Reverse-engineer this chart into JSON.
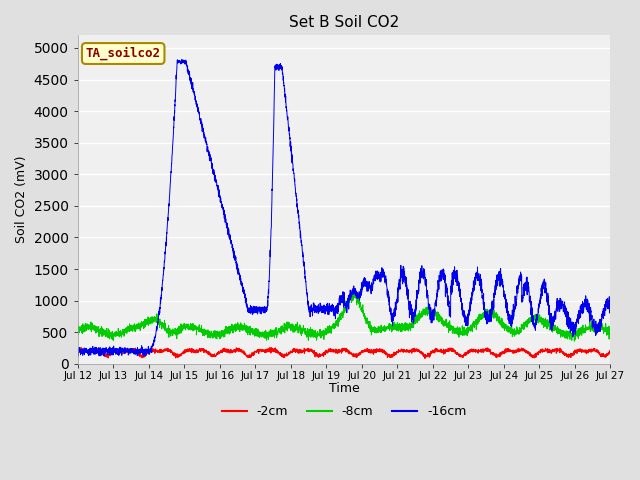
{
  "title": "Set B Soil CO2",
  "ylabel": "Soil CO2 (mV)",
  "xlabel": "Time",
  "annotation_text": "TA_soilco2",
  "annotation_bg": "#ffffcc",
  "annotation_border": "#aa8800",
  "annotation_text_color": "#880000",
  "fig_bg": "#e0e0e0",
  "plot_bg": "#f0f0f0",
  "ylim": [
    0,
    5200
  ],
  "yticks": [
    0,
    500,
    1000,
    1500,
    2000,
    2500,
    3000,
    3500,
    4000,
    4500,
    5000
  ],
  "line_colors": {
    "2cm": "#ff0000",
    "8cm": "#00cc00",
    "16cm": "#0000ee"
  },
  "legend_labels": [
    "-2cm",
    "-8cm",
    "-16cm"
  ]
}
